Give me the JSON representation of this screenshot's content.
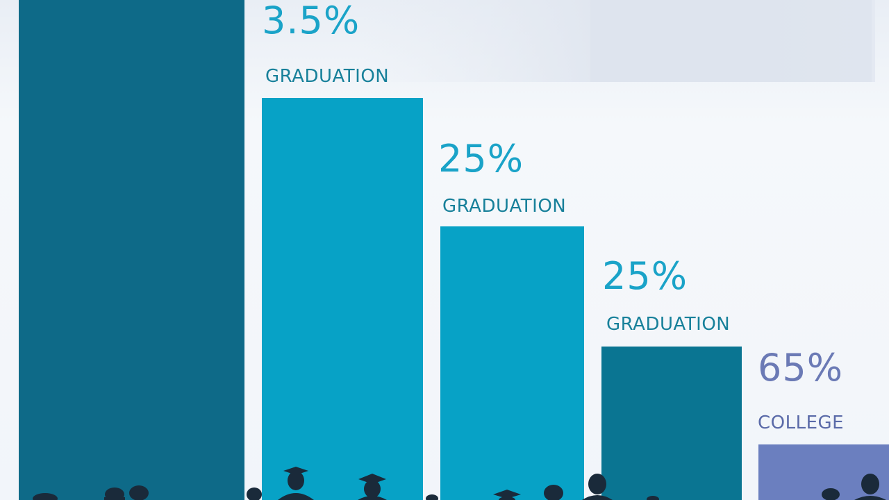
{
  "items": [
    {
      "value_label": "3.5%",
      "label": "GRADUATION"
    },
    {
      "value_label": "25%",
      "label": "GRADUATION"
    },
    {
      "value_label": "25%",
      "label": "GRADUATION"
    },
    {
      "value_label": "65%",
      "label": "COLLEGE"
    }
  ]
}
